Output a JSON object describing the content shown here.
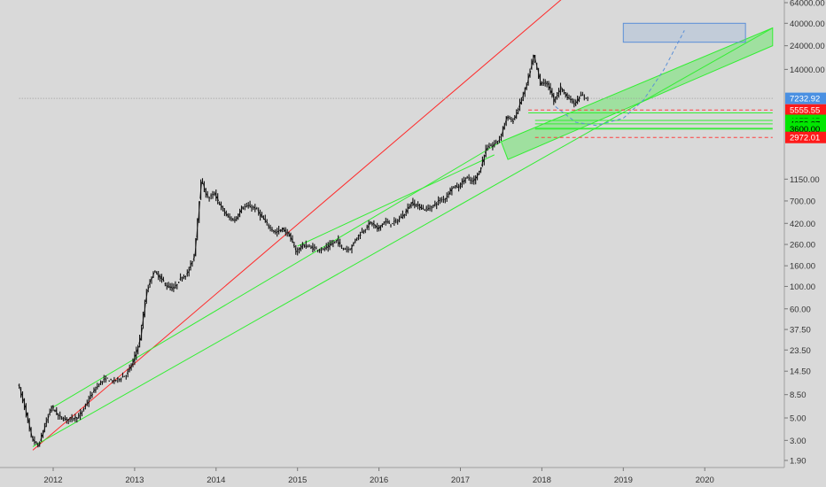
{
  "chart_data": {
    "type": "candlestick",
    "title": "",
    "xlabel": "",
    "ylabel": "",
    "y_scale": "log",
    "ylim": [
      1.6,
      64000
    ],
    "xlim": [
      "2011-08",
      "2020-10"
    ],
    "grid": false,
    "x_ticks": [
      "2012",
      "2013",
      "2014",
      "2015",
      "2016",
      "2017",
      "2018",
      "2019",
      "2020"
    ],
    "y_ticks": [
      "64000.00",
      "40000.00",
      "24000.00",
      "14000.00",
      "7232.92",
      "5555.55",
      "4377.65",
      "4053.87",
      "3662.99",
      "3600.00",
      "2972.01",
      "1150.00",
      "700.00",
      "420.00",
      "260.00",
      "160.00",
      "100.00",
      "60.00",
      "37.50",
      "23.50",
      "14.50",
      "8.50",
      "5.00",
      "3.00",
      "1.90"
    ],
    "price_labels": [
      {
        "text": "7232.92",
        "value": 7232.92,
        "color": "#4a90e2"
      },
      {
        "text": "5555.55",
        "value": 5555.55,
        "color": "#ff1a1a"
      },
      {
        "text": "4377.65",
        "value": 4377.65,
        "color": "#00e600"
      },
      {
        "text": "4053.87",
        "value": 4053.87,
        "color": "#00e600"
      },
      {
        "text": "3662.99",
        "value": 3662.99,
        "color": "#00e600"
      },
      {
        "text": "3600.00",
        "value": 3600.0,
        "color": "#00e600"
      },
      {
        "text": "2972.01",
        "value": 2972.01,
        "color": "#ff1a1a"
      }
    ],
    "series": [
      {
        "kind": "price",
        "points": [
          [
            "2011-08",
            11
          ],
          [
            "2011-09",
            6.5
          ],
          [
            "2011-10",
            3.2
          ],
          [
            "2011-11",
            2.6
          ],
          [
            "2011-12",
            4.2
          ],
          [
            "2012-01",
            6.5
          ],
          [
            "2012-02",
            5.2
          ],
          [
            "2012-03",
            4.8
          ],
          [
            "2012-04",
            5.0
          ],
          [
            "2012-05",
            5.1
          ],
          [
            "2012-06",
            6.7
          ],
          [
            "2012-07",
            8.8
          ],
          [
            "2012-08",
            11
          ],
          [
            "2012-09",
            12.2
          ],
          [
            "2012-10",
            11.5
          ],
          [
            "2012-11",
            12.3
          ],
          [
            "2012-12",
            13.4
          ],
          [
            "2013-01",
            18
          ],
          [
            "2013-02",
            30
          ],
          [
            "2013-03",
            90
          ],
          [
            "2013-04",
            140
          ],
          [
            "2013-05",
            122
          ],
          [
            "2013-06",
            100
          ],
          [
            "2013-07",
            95
          ],
          [
            "2013-08",
            120
          ],
          [
            "2013-09",
            135
          ],
          [
            "2013-10",
            200
          ],
          [
            "2013-11",
            1100
          ],
          [
            "2013-12",
            750
          ],
          [
            "2014-01",
            820
          ],
          [
            "2014-02",
            600
          ],
          [
            "2014-03",
            480
          ],
          [
            "2014-04",
            450
          ],
          [
            "2014-05",
            600
          ],
          [
            "2014-06",
            620
          ],
          [
            "2014-07",
            590
          ],
          [
            "2014-08",
            480
          ],
          [
            "2014-09",
            390
          ],
          [
            "2014-10",
            340
          ],
          [
            "2014-11",
            370
          ],
          [
            "2014-12",
            320
          ],
          [
            "2015-01",
            220
          ],
          [
            "2015-02",
            255
          ],
          [
            "2015-03",
            245
          ],
          [
            "2015-04",
            235
          ],
          [
            "2015-05",
            230
          ],
          [
            "2015-06",
            255
          ],
          [
            "2015-07",
            285
          ],
          [
            "2015-08",
            235
          ],
          [
            "2015-09",
            236
          ],
          [
            "2015-10",
            310
          ],
          [
            "2015-11",
            360
          ],
          [
            "2015-12",
            430
          ],
          [
            "2016-01",
            370
          ],
          [
            "2016-02",
            435
          ],
          [
            "2016-03",
            415
          ],
          [
            "2016-04",
            450
          ],
          [
            "2016-05",
            530
          ],
          [
            "2016-06",
            670
          ],
          [
            "2016-07",
            625
          ],
          [
            "2016-08",
            575
          ],
          [
            "2016-09",
            610
          ],
          [
            "2016-10",
            700
          ],
          [
            "2016-11",
            745
          ],
          [
            "2016-12",
            960
          ],
          [
            "2017-01",
            970
          ],
          [
            "2017-02",
            1190
          ],
          [
            "2017-03",
            1080
          ],
          [
            "2017-04",
            1350
          ],
          [
            "2017-05",
            2300
          ],
          [
            "2017-06",
            2500
          ],
          [
            "2017-07",
            2880
          ],
          [
            "2017-08",
            4700
          ],
          [
            "2017-09",
            4340
          ],
          [
            "2017-10",
            6450
          ],
          [
            "2017-11",
            10000
          ],
          [
            "2017-12",
            19000
          ],
          [
            "2018-01",
            10200
          ],
          [
            "2018-02",
            10300
          ],
          [
            "2018-03",
            6900
          ],
          [
            "2018-04",
            9250
          ],
          [
            "2018-05",
            7500
          ],
          [
            "2018-06",
            6400
          ],
          [
            "2018-07",
            7730
          ],
          [
            "2018-08",
            7232.92
          ]
        ]
      }
    ],
    "lines": [
      {
        "kind": "trendline",
        "color": "#ff2a2a",
        "points": [
          [
            "2011-10",
            2.4
          ],
          [
            "2020-09",
            3200000
          ]
        ]
      },
      {
        "kind": "trendline",
        "color": "#33ee33",
        "points": [
          [
            "2011-10",
            2.6
          ],
          [
            "2020-11",
            36000
          ]
        ]
      },
      {
        "kind": "trendline",
        "color": "#33ee33",
        "points": [
          [
            "2012-01",
            6.4
          ],
          [
            "2017-07",
            2700
          ]
        ]
      },
      {
        "kind": "trendline",
        "color": "#33ee33",
        "points": [
          [
            "2015-01",
            250
          ],
          [
            "2017-06",
            2000
          ]
        ]
      },
      {
        "kind": "channel",
        "color": "#33ee33",
        "fill_opacity": 0.35,
        "polygon": [
          [
            "2017-07",
            2700
          ],
          [
            "2020-11",
            36000
          ],
          [
            "2020-11",
            24000
          ],
          [
            "2017-08",
            1800
          ]
        ]
      },
      {
        "kind": "hline",
        "color": "#33ee33",
        "value": 5200,
        "from": "2017-11",
        "to": "2020-11"
      },
      {
        "kind": "hline",
        "color": "#33ee33",
        "value": 4377.65,
        "from": "2017-12",
        "to": "2020-11"
      },
      {
        "kind": "hline",
        "color": "#33ee33",
        "value": 4053.87,
        "from": "2017-12",
        "to": "2020-11"
      },
      {
        "kind": "hline",
        "color": "#33ee33",
        "value": 3662.99,
        "from": "2017-12",
        "to": "2020-11"
      },
      {
        "kind": "hline",
        "color": "#33ee33",
        "value": 3600.0,
        "from": "2017-12",
        "to": "2020-11"
      },
      {
        "kind": "hline",
        "color": "#ff4040",
        "dashed": true,
        "value": 5555.55,
        "from": "2017-11",
        "to": "2020-11"
      },
      {
        "kind": "hline",
        "color": "#ff4040",
        "dashed": true,
        "value": 2972.01,
        "from": "2017-12",
        "to": "2020-11"
      },
      {
        "kind": "hline",
        "color": "#9a9a9a",
        "dotted": true,
        "value": 7232.92,
        "from": "2011-08",
        "to": "2020-11"
      },
      {
        "kind": "projection",
        "color": "#5b8fd8",
        "dashed": true,
        "points": [
          [
            "2018-03",
            6000
          ],
          [
            "2018-06",
            4200
          ],
          [
            "2018-09",
            3900
          ],
          [
            "2019-01",
            4600
          ],
          [
            "2019-04",
            7000
          ],
          [
            "2019-07",
            14000
          ],
          [
            "2019-10",
            34000
          ]
        ]
      },
      {
        "kind": "target_box",
        "color": "#5b8fd8",
        "y_range": [
          26000,
          40000
        ],
        "x_range": [
          "2019-01",
          "2020-07"
        ]
      }
    ]
  }
}
